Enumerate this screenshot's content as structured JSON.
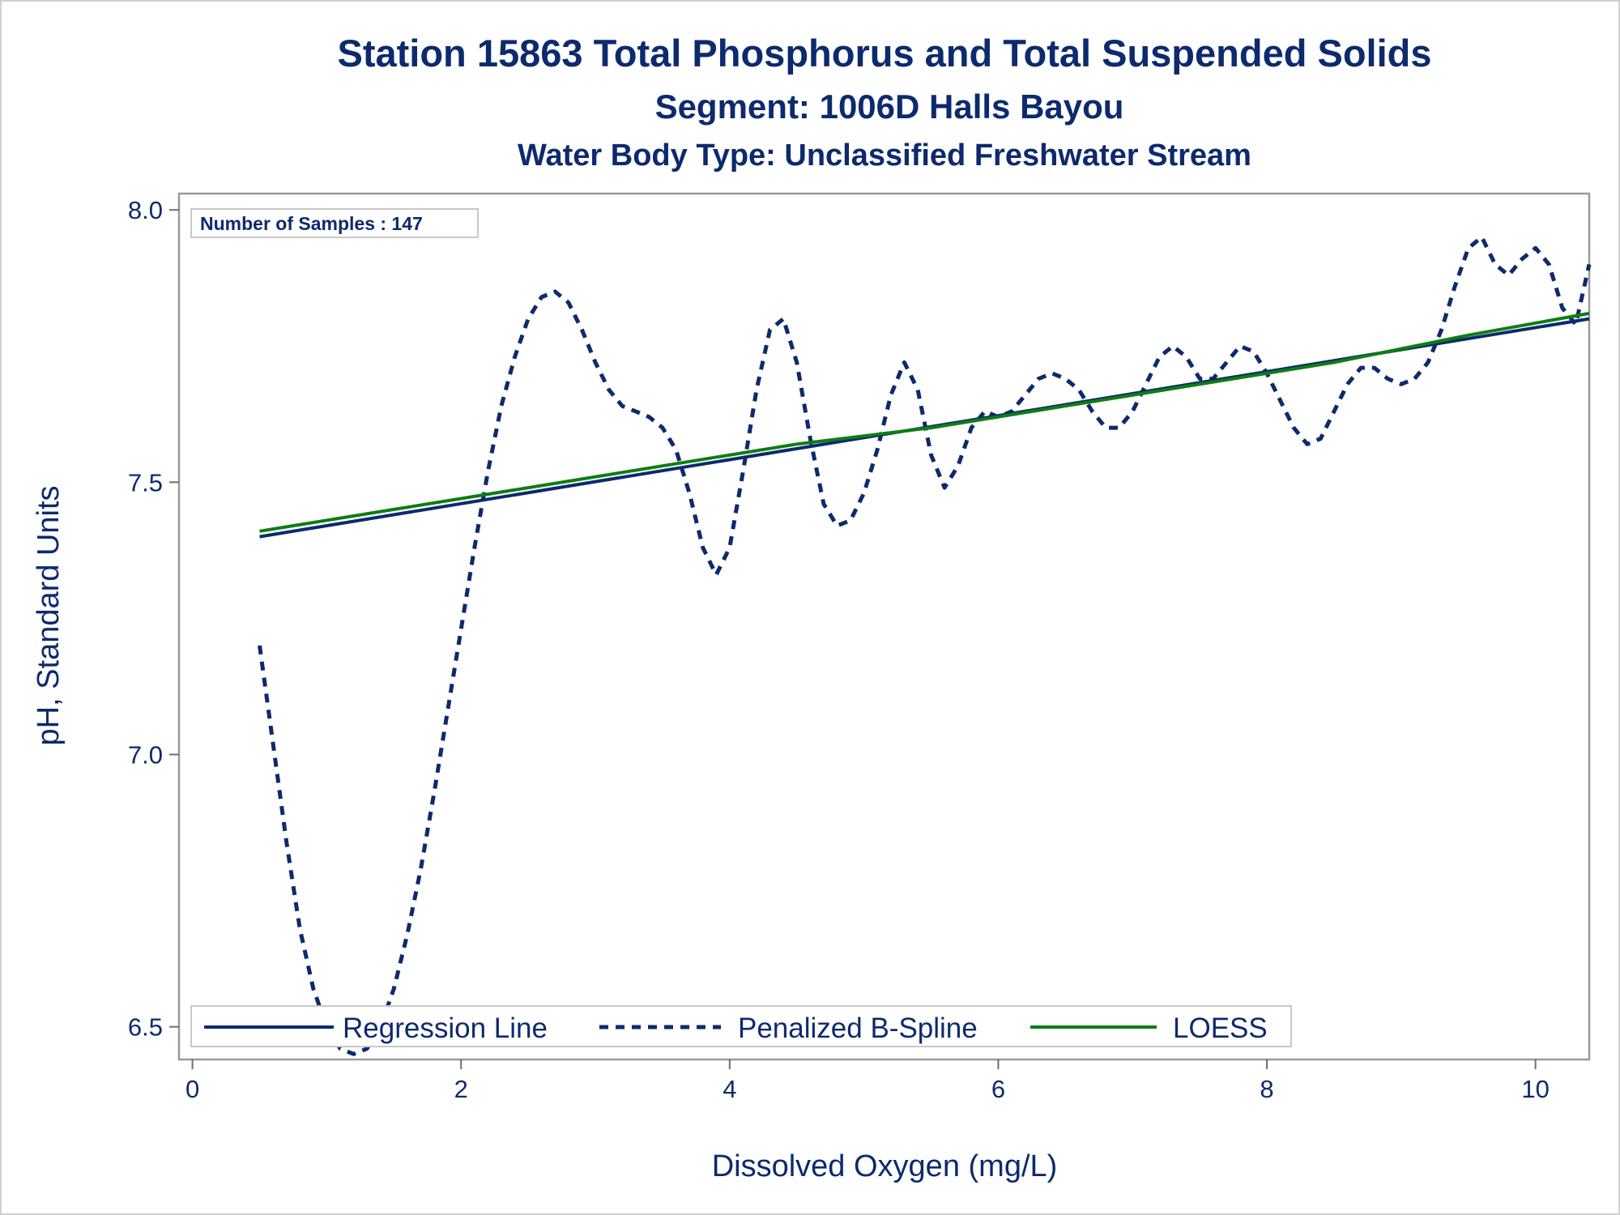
{
  "chart_data": {
    "type": "line",
    "title": "Station 15863  Total Phosphorus and Total Suspended Solids",
    "subtitle": "Segment: 1006D  Halls Bayou",
    "subtitle2": "Water Body Type: Unclassified Freshwater Stream",
    "xlabel": "Dissolved Oxygen (mg/L)",
    "ylabel": "pH, Standard Units",
    "xlim": [
      -0.1,
      10.4
    ],
    "ylim": [
      6.44,
      8.03
    ],
    "xticks": [
      0,
      2,
      4,
      6,
      8,
      10
    ],
    "xtick_labels": [
      "0",
      "2",
      "4",
      "6",
      "8",
      "10"
    ],
    "yticks": [
      6.5,
      7.0,
      7.5,
      8.0
    ],
    "ytick_labels": [
      "6.5",
      "7.0",
      "7.5",
      "8.0"
    ],
    "inset_label": "Number of Samples : 147",
    "legend_placement": "bottom-left inside",
    "series": [
      {
        "name": "Regression Line",
        "style": "solid",
        "color": "#0d2a6e",
        "x": [
          0.5,
          10.4
        ],
        "y": [
          7.4,
          7.8
        ]
      },
      {
        "name": "Penalized B-Spline",
        "style": "dashed",
        "color": "#0d2a6e",
        "x": [
          0.5,
          0.6,
          0.7,
          0.8,
          0.9,
          1.0,
          1.1,
          1.2,
          1.3,
          1.4,
          1.5,
          1.6,
          1.7,
          1.8,
          1.9,
          2.0,
          2.1,
          2.2,
          2.3,
          2.4,
          2.5,
          2.6,
          2.7,
          2.8,
          2.9,
          3.0,
          3.1,
          3.2,
          3.3,
          3.4,
          3.5,
          3.6,
          3.7,
          3.8,
          3.9,
          4.0,
          4.1,
          4.2,
          4.3,
          4.4,
          4.5,
          4.6,
          4.7,
          4.8,
          4.9,
          5.0,
          5.1,
          5.2,
          5.3,
          5.4,
          5.5,
          5.6,
          5.7,
          5.8,
          5.9,
          6.0,
          6.1,
          6.2,
          6.3,
          6.4,
          6.5,
          6.6,
          6.7,
          6.8,
          6.9,
          7.0,
          7.1,
          7.2,
          7.3,
          7.4,
          7.5,
          7.6,
          7.7,
          7.8,
          7.9,
          8.0,
          8.1,
          8.2,
          8.3,
          8.4,
          8.5,
          8.6,
          8.7,
          8.8,
          8.9,
          9.0,
          9.1,
          9.2,
          9.3,
          9.4,
          9.5,
          9.6,
          9.7,
          9.8,
          9.9,
          10.0,
          10.1,
          10.2,
          10.3,
          10.4
        ],
        "y": [
          7.2,
          7.02,
          6.84,
          6.68,
          6.57,
          6.5,
          6.46,
          6.45,
          6.46,
          6.5,
          6.57,
          6.67,
          6.79,
          6.93,
          7.08,
          7.23,
          7.38,
          7.52,
          7.64,
          7.73,
          7.8,
          7.84,
          7.85,
          7.83,
          7.78,
          7.72,
          7.67,
          7.64,
          7.63,
          7.62,
          7.6,
          7.56,
          7.48,
          7.38,
          7.33,
          7.38,
          7.52,
          7.67,
          7.78,
          7.8,
          7.72,
          7.58,
          7.46,
          7.42,
          7.43,
          7.48,
          7.56,
          7.66,
          7.72,
          7.67,
          7.55,
          7.49,
          7.53,
          7.6,
          7.63,
          7.62,
          7.63,
          7.66,
          7.69,
          7.7,
          7.69,
          7.67,
          7.63,
          7.6,
          7.6,
          7.63,
          7.68,
          7.73,
          7.75,
          7.73,
          7.69,
          7.69,
          7.72,
          7.75,
          7.74,
          7.7,
          7.65,
          7.6,
          7.57,
          7.58,
          7.63,
          7.68,
          7.71,
          7.71,
          7.69,
          7.68,
          7.69,
          7.72,
          7.78,
          7.86,
          7.93,
          7.95,
          7.9,
          7.88,
          7.91,
          7.93,
          7.9,
          7.82,
          7.79,
          7.9
        ]
      },
      {
        "name": "LOESS",
        "style": "solid",
        "color": "#0e7d12",
        "x": [
          0.5,
          1.5,
          2.5,
          3.5,
          4.5,
          5.5,
          6.5,
          7.5,
          8.5,
          9.5,
          10.4
        ],
        "y": [
          7.41,
          7.45,
          7.49,
          7.53,
          7.57,
          7.6,
          7.64,
          7.68,
          7.72,
          7.77,
          7.81
        ]
      }
    ]
  }
}
